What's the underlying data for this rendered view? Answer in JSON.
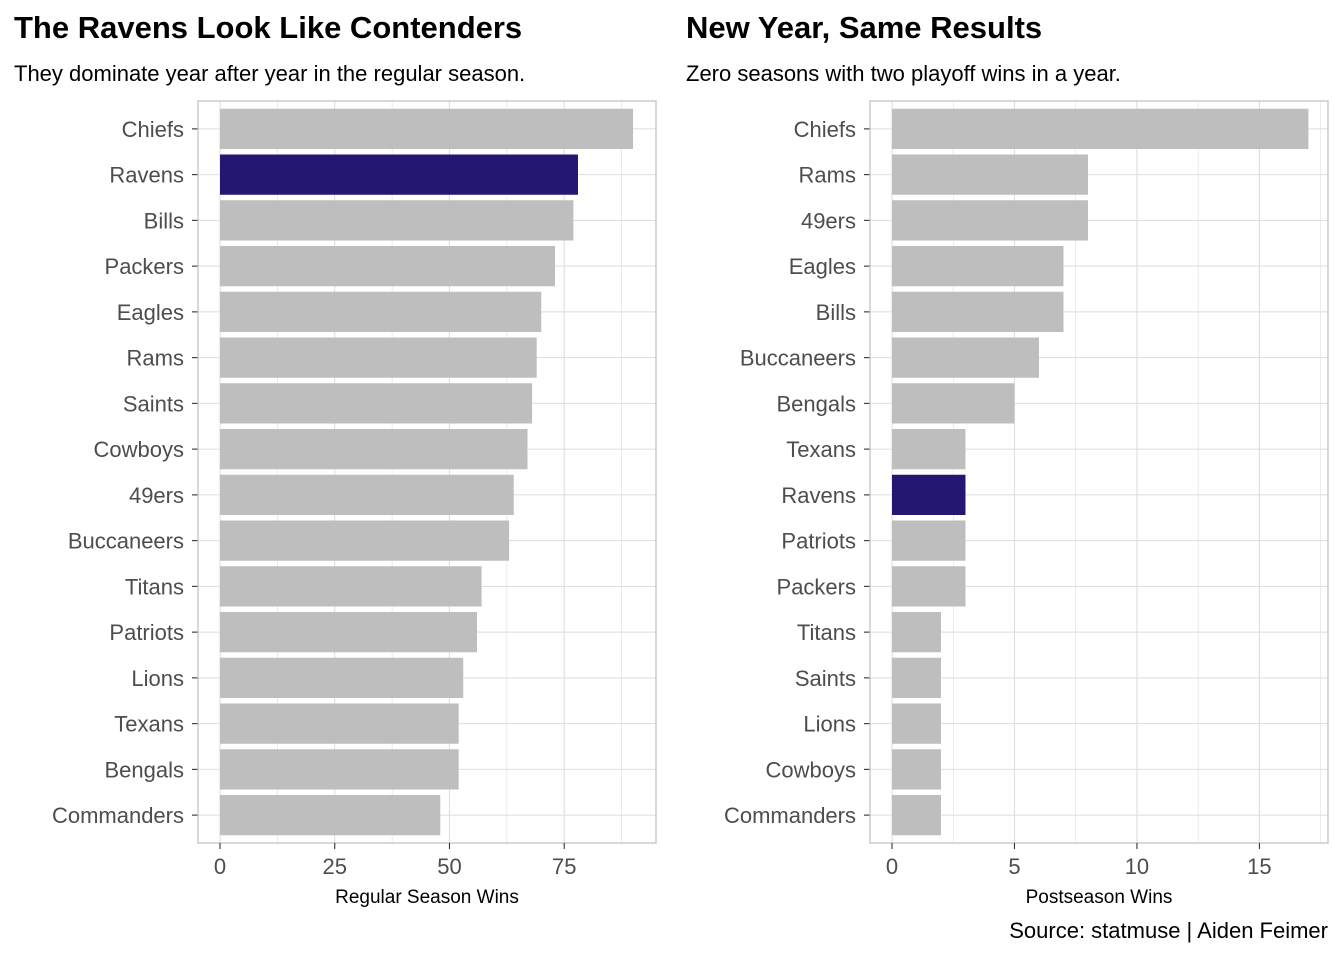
{
  "caption": "Source: statmuse | Aiden Feimer",
  "colors": {
    "highlight": "#231772",
    "bar": "#bebebe",
    "grid": "#dedede",
    "frame": "#c2c2c2",
    "tick_text": "#4d4d4d"
  },
  "chart_data": [
    {
      "type": "bar",
      "orientation": "horizontal",
      "title": "The Ravens Look Like Contenders",
      "subtitle": "They dominate year after year in the regular season.",
      "xlabel": "Regular Season Wins",
      "ylabel": "",
      "xlim": [
        0,
        95
      ],
      "xticks": [
        0,
        25,
        50,
        75
      ],
      "grid": true,
      "highlight": "Ravens",
      "categories": [
        "Chiefs",
        "Ravens",
        "Bills",
        "Packers",
        "Eagles",
        "Rams",
        "Saints",
        "Cowboys",
        "49ers",
        "Buccaneers",
        "Titans",
        "Patriots",
        "Lions",
        "Texans",
        "Bengals",
        "Commanders"
      ],
      "values": [
        90,
        78,
        77,
        73,
        70,
        69,
        68,
        67,
        64,
        63,
        57,
        56,
        53,
        52,
        52,
        48
      ]
    },
    {
      "type": "bar",
      "orientation": "horizontal",
      "title": "New Year, Same Results",
      "subtitle": "Zero seasons with two playoff wins in a year.",
      "xlabel": "Postseason Wins",
      "ylabel": "",
      "xlim": [
        0,
        17.8
      ],
      "xticks": [
        0,
        5,
        10,
        15
      ],
      "grid": true,
      "highlight": "Ravens",
      "categories": [
        "Chiefs",
        "Rams",
        "49ers",
        "Eagles",
        "Bills",
        "Buccaneers",
        "Bengals",
        "Texans",
        "Ravens",
        "Patriots",
        "Packers",
        "Titans",
        "Saints",
        "Lions",
        "Cowboys",
        "Commanders"
      ],
      "values": [
        17,
        8,
        8,
        7,
        7,
        6,
        5,
        3,
        3,
        3,
        3,
        2,
        2,
        2,
        2,
        2
      ]
    }
  ]
}
